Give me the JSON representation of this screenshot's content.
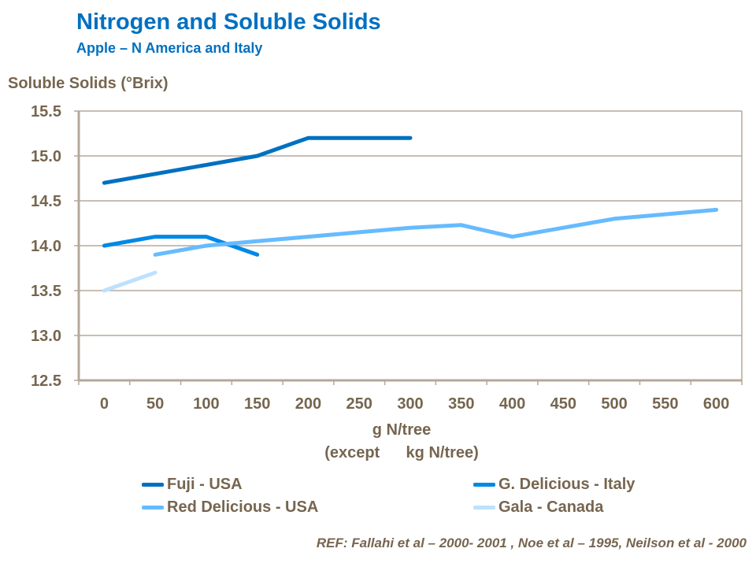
{
  "chart_data": {
    "type": "line",
    "title": "Nitrogen and Soluble Solids",
    "subtitle": "Apple – N America and Italy",
    "ylabel": "Soluble Solids (°Brix)",
    "xlabel": "g N/tree",
    "xlabel_note": "(except      kg N/tree)",
    "categories": [
      "0",
      "50",
      "100",
      "150",
      "200",
      "250",
      "300",
      "350",
      "400",
      "450",
      "500",
      "550",
      "600"
    ],
    "ylim": [
      12.5,
      15.5
    ],
    "yticks": [
      "12.5",
      "13.0",
      "13.5",
      "14.0",
      "14.5",
      "15.0",
      "15.5"
    ],
    "grid": true,
    "legend_position": "bottom",
    "series": [
      {
        "name": "Fuji - USA",
        "color": "#0070C0",
        "values": [
          14.7,
          14.8,
          14.9,
          15.0,
          15.2,
          15.2,
          15.2,
          null,
          null,
          null,
          null,
          null,
          null
        ]
      },
      {
        "name": "G. Delicious - Italy",
        "color": "#0088E6",
        "values": [
          14.0,
          14.1,
          14.1,
          13.9,
          null,
          null,
          null,
          null,
          null,
          null,
          null,
          null,
          null
        ]
      },
      {
        "name": "Red Delicious - USA",
        "color": "#66BBFF",
        "values": [
          null,
          13.9,
          14.0,
          14.05,
          14.1,
          14.15,
          14.2,
          14.23,
          14.1,
          14.2,
          14.3,
          14.35,
          14.4
        ]
      },
      {
        "name": "Gala - Canada",
        "color": "#BDE1FF",
        "values": [
          13.5,
          13.7,
          null,
          null,
          null,
          null,
          null,
          null,
          null,
          null,
          null,
          null,
          null
        ]
      }
    ]
  },
  "reference": "REF: Fallahi et al – 2000- 2001 , Noe et al – 1995, Neilson et al - 2000"
}
